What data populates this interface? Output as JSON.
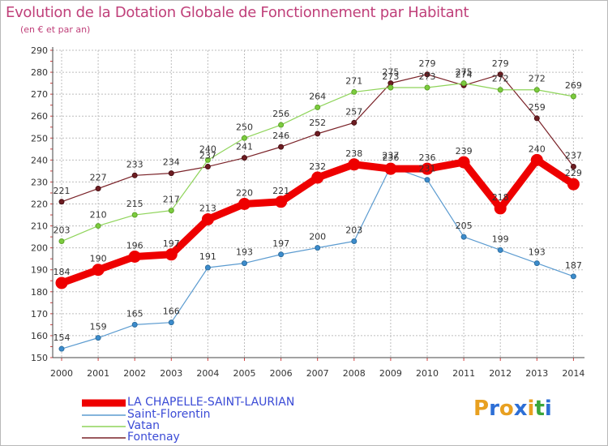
{
  "title": "Evolution de la Dotation Globale de Fonctionnement par Habitant",
  "subtitle": "(en € et par an)",
  "brand": {
    "letters": [
      "P",
      "r",
      "o",
      "x",
      "i",
      "t",
      "i"
    ],
    "colors": [
      "#e8a020",
      "#2d6fd6",
      "#e8a020",
      "#2d6fd6",
      "#e8a020",
      "#3aa63a",
      "#2d6fd6"
    ]
  },
  "chart_data": {
    "type": "line",
    "title": "Evolution de la Dotation Globale de Fonctionnement par Habitant",
    "ylabel": "(en € et par an)",
    "xlabel": "",
    "ylim": [
      150,
      290
    ],
    "yticks": [
      150,
      160,
      170,
      180,
      190,
      200,
      210,
      220,
      230,
      240,
      250,
      260,
      270,
      280,
      290
    ],
    "categories": [
      "2000",
      "2001",
      "2002",
      "2003",
      "2004",
      "2005",
      "2006",
      "2007",
      "2008",
      "2009",
      "2010",
      "2011",
      "2012",
      "2013",
      "2014"
    ],
    "grid": true,
    "series": [
      {
        "name": "Fontenay",
        "color": "#7a2228",
        "values": [
          221,
          227,
          233,
          234,
          237,
          241,
          246,
          252,
          257,
          275,
          279,
          274,
          279,
          259,
          237
        ]
      },
      {
        "name": "Vatan",
        "color": "#8fd45a",
        "values": [
          203,
          210,
          215,
          217,
          240,
          250,
          256,
          264,
          271,
          273,
          273,
          275,
          272,
          272,
          269
        ]
      },
      {
        "name": "Saint-Florentin",
        "color": "#5b9bd0",
        "values": [
          154,
          159,
          165,
          166,
          191,
          193,
          197,
          200,
          203,
          237,
          231,
          205,
          199,
          193,
          187
        ]
      },
      {
        "name": "LA CHAPELLE-SAINT-LAURIAN",
        "color": "#ee0000",
        "values": [
          184,
          190,
          196,
          197,
          213,
          220,
          221,
          232,
          238,
          236,
          236,
          239,
          218,
          240,
          229
        ]
      }
    ],
    "legend_order": [
      "LA CHAPELLE-SAINT-LAURIAN",
      "Saint-Florentin",
      "Vatan",
      "Fontenay"
    ],
    "legend_position": "bottom-left"
  }
}
